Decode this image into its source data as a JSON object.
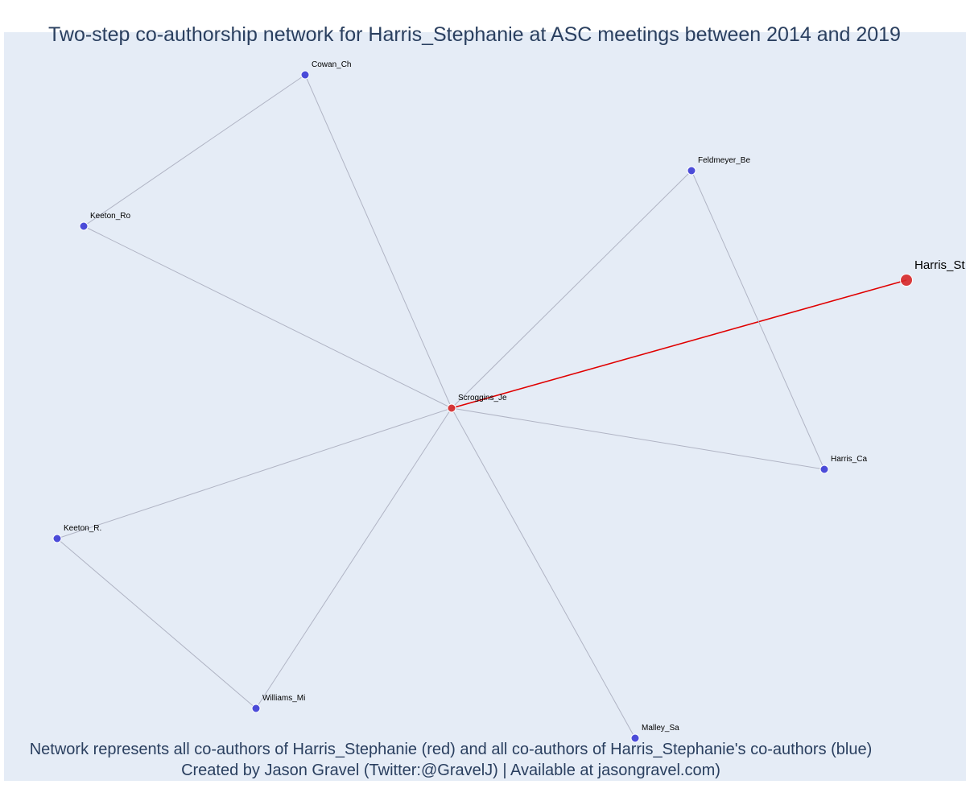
{
  "title": "Two-step co-authorship network for Harris_Stephanie at ASC meetings between 2014 and 2019",
  "caption": {
    "line1": "Network represents all co-authors of Harris_Stephanie (red) and all co-authors of Harris_Stephanie's co-authors (blue)",
    "line2": "Created by Jason Gravel (Twitter:@GravelJ) | Available at jasongravel.com)"
  },
  "colors": {
    "background": "#e5ecf6",
    "coauthor": "#d62728",
    "second_step": "#3b3bd6",
    "focal_edge": "#e00000",
    "edge": "#b0b4c4"
  },
  "chart_data": {
    "type": "network",
    "nodes": [
      {
        "id": "Harris_Stephanie",
        "label": "Harris_St",
        "group": "focal"
      },
      {
        "id": "Scroggins_Je",
        "label": "Scroggins_Je",
        "group": "coauthor"
      },
      {
        "id": "Cowan_Ch",
        "label": "Cowan_Ch",
        "group": "second_step"
      },
      {
        "id": "Keeton_Ro",
        "label": "Keeton_Ro",
        "group": "second_step"
      },
      {
        "id": "Feldmeyer_Be",
        "label": "Feldmeyer_Be",
        "group": "second_step"
      },
      {
        "id": "Harris_Ca",
        "label": "Harris_Ca",
        "group": "second_step"
      },
      {
        "id": "Keeton_R.",
        "label": "Keeton_R.",
        "group": "second_step"
      },
      {
        "id": "Williams_Mi",
        "label": "Williams_Mi",
        "group": "second_step"
      },
      {
        "id": "Malley_Sa",
        "label": "Malley_Sa",
        "group": "second_step"
      }
    ],
    "edges": [
      {
        "source": "Harris_Stephanie",
        "target": "Scroggins_Je",
        "focal": true
      },
      {
        "source": "Scroggins_Je",
        "target": "Cowan_Ch",
        "focal": false
      },
      {
        "source": "Scroggins_Je",
        "target": "Keeton_Ro",
        "focal": false
      },
      {
        "source": "Scroggins_Je",
        "target": "Feldmeyer_Be",
        "focal": false
      },
      {
        "source": "Scroggins_Je",
        "target": "Harris_Ca",
        "focal": false
      },
      {
        "source": "Scroggins_Je",
        "target": "Keeton_R.",
        "focal": false
      },
      {
        "source": "Scroggins_Je",
        "target": "Williams_Mi",
        "focal": false
      },
      {
        "source": "Scroggins_Je",
        "target": "Malley_Sa",
        "focal": false
      },
      {
        "source": "Cowan_Ch",
        "target": "Keeton_Ro",
        "focal": false
      },
      {
        "source": "Feldmeyer_Be",
        "target": "Harris_Ca",
        "focal": false
      },
      {
        "source": "Keeton_R.",
        "target": "Williams_Mi",
        "focal": false
      }
    ]
  }
}
